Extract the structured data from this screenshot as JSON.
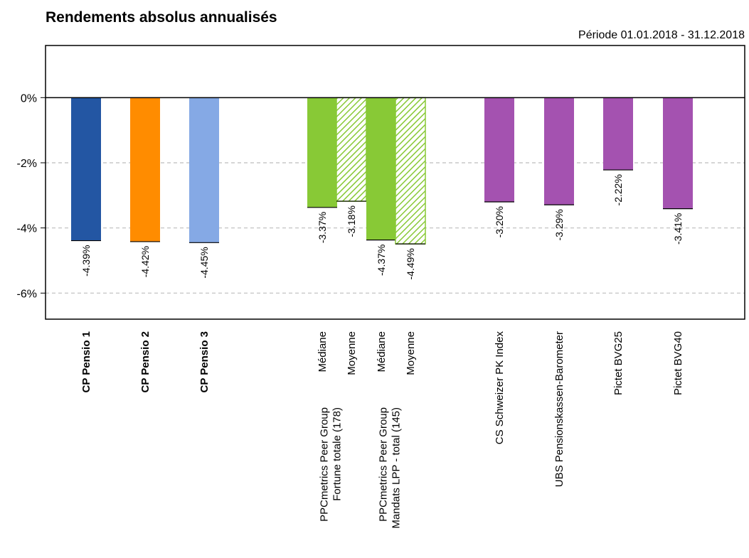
{
  "chart_data": {
    "type": "bar",
    "title": "Rendements absolus annualisés",
    "subtitle": "Période 01.01.2018 - 31.12.2018",
    "ylim": [
      -6.8,
      1.6
    ],
    "yticks": [
      0,
      -2,
      -4,
      -6
    ],
    "ytick_labels": [
      "0%",
      "-2%",
      "-4%",
      "-6%"
    ],
    "grid": "horizontal dashed",
    "legend": "none",
    "bars": [
      {
        "label": "CP Pensio 1",
        "value": -4.39,
        "value_label": "-4.39%",
        "color": "#2356A3",
        "hatched": false,
        "bold": true
      },
      {
        "label": "CP Pensio 2",
        "value": -4.42,
        "value_label": "-4.42%",
        "color": "#FF8C00",
        "hatched": false,
        "bold": true
      },
      {
        "label": "CP Pensio 3",
        "value": -4.45,
        "value_label": "-4.45%",
        "color": "#85A9E5",
        "hatched": false,
        "bold": true
      },
      {
        "label": "Médiane",
        "value": -3.37,
        "value_label": "-3.37%",
        "color": "#88C936",
        "hatched": false,
        "bold": false
      },
      {
        "label": "Moyenne",
        "value": -3.18,
        "value_label": "-3.18%",
        "color": "#88C936",
        "hatched": true,
        "bold": false
      },
      {
        "label": "Médiane",
        "value": -4.37,
        "value_label": "-4.37%",
        "color": "#88C936",
        "hatched": false,
        "bold": false
      },
      {
        "label": "Moyenne",
        "value": -4.49,
        "value_label": "-4.49%",
        "color": "#88C936",
        "hatched": true,
        "bold": false
      },
      {
        "label": "CS Schweizer PK Index",
        "value": -3.2,
        "value_label": "-3.20%",
        "color": "#A452B0",
        "hatched": false,
        "bold": false
      },
      {
        "label": "UBS Pensionskassen-Barometer",
        "value": -3.29,
        "value_label": "-3.29%",
        "color": "#A452B0",
        "hatched": false,
        "bold": false
      },
      {
        "label": "Pictet BVG25",
        "value": -2.22,
        "value_label": "-2.22%",
        "color": "#A452B0",
        "hatched": false,
        "bold": false
      },
      {
        "label": "Pictet BVG40",
        "value": -3.41,
        "value_label": "-3.41%",
        "color": "#A452B0",
        "hatched": false,
        "bold": false
      }
    ],
    "group_labels": [
      {
        "lines": [
          "PPCmetrics Peer Group",
          "Fortune totale (178)"
        ],
        "bars": [
          3,
          4
        ]
      },
      {
        "lines": [
          "PPCmetrics Peer Group",
          "Mandats LPP - total (145)"
        ],
        "bars": [
          5,
          6
        ]
      }
    ]
  }
}
